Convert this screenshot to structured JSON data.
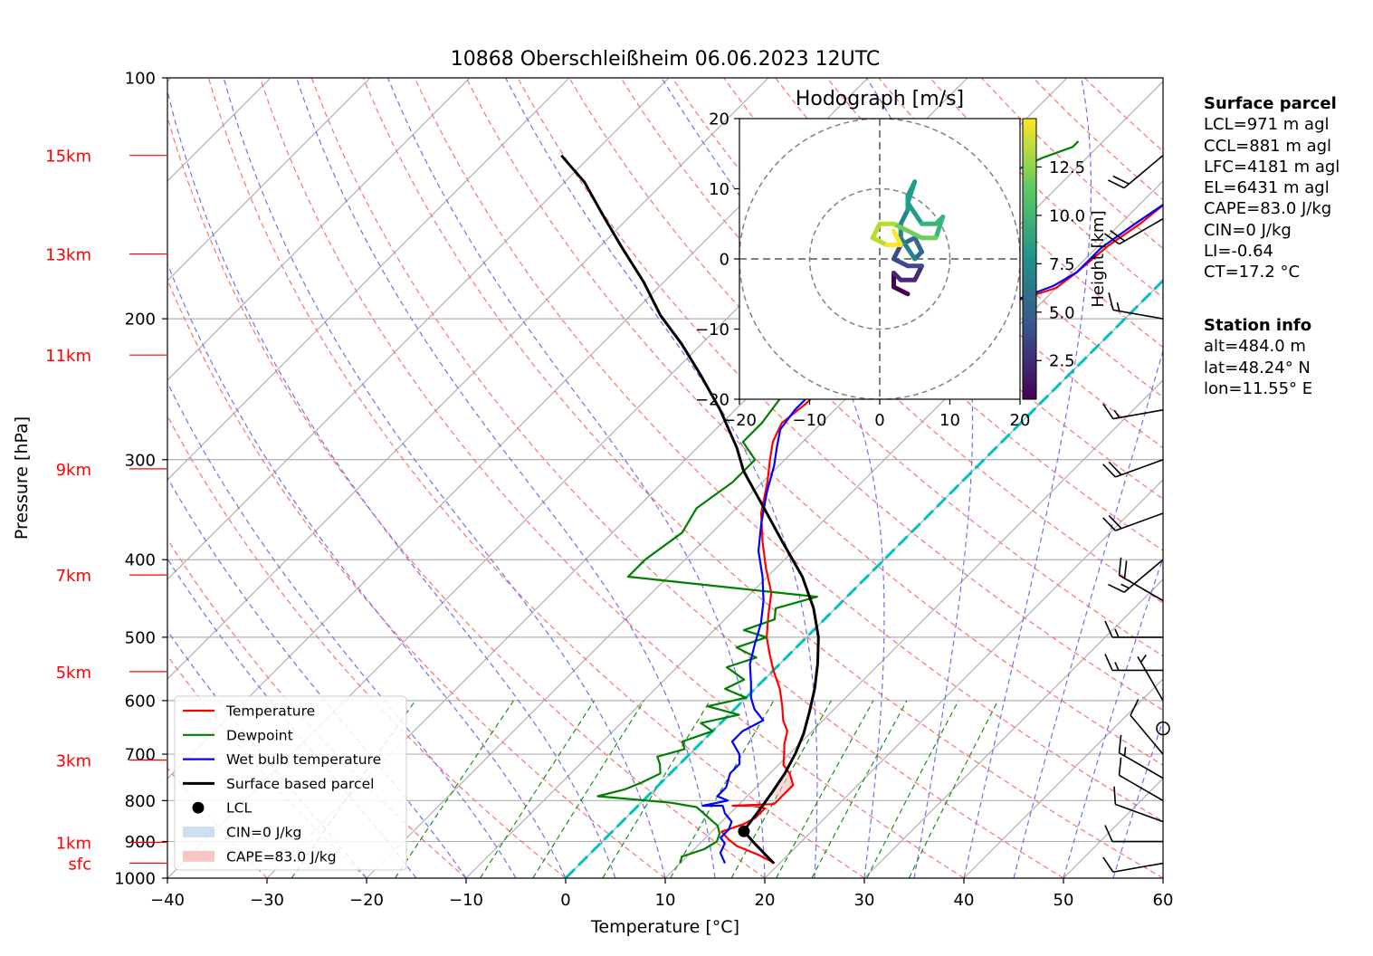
{
  "title": "10868 Oberschleißheim 06.06.2023 12UTC",
  "chart_data": {
    "type": "skew-t log-p",
    "title": "10868 Oberschleißheim 06.06.2023 12UTC",
    "xlabel": "Temperature [°C]",
    "ylabel": "Pressure [hPa]",
    "xlim": [
      -40,
      60
    ],
    "ylim_hpa": [
      1000,
      100
    ],
    "x_ticks": [
      "−40",
      "−30",
      "−20",
      "−10",
      "0",
      "10",
      "20",
      "30",
      "40",
      "50",
      "60"
    ],
    "y_ticks": [
      "100",
      "200",
      "300",
      "400",
      "500",
      "600",
      "700",
      "800",
      "900",
      "1000"
    ],
    "height_labels": [
      {
        "label": "15km",
        "p": 125
      },
      {
        "label": "13km",
        "p": 166
      },
      {
        "label": "11km",
        "p": 222
      },
      {
        "label": "9km",
        "p": 308
      },
      {
        "label": "7km",
        "p": 418
      },
      {
        "label": "5km",
        "p": 552
      },
      {
        "label": "3km",
        "p": 712
      },
      {
        "label": "1km",
        "p": 902
      },
      {
        "label": "sfc",
        "p": 958
      }
    ],
    "grid": true,
    "series": [
      {
        "name": "Temperature",
        "color": "#ff0000",
        "points": [
          [
            19.5,
            958
          ],
          [
            17,
            935
          ],
          [
            14,
            912
          ],
          [
            12.5,
            895
          ],
          [
            11,
            875
          ],
          [
            12.5,
            855
          ],
          [
            13,
            840
          ],
          [
            13,
            818
          ],
          [
            11.5,
            812
          ],
          [
            9.5,
            812
          ],
          [
            13.5,
            808
          ],
          [
            13.5,
            788
          ],
          [
            13.5,
            765
          ],
          [
            12,
            740
          ],
          [
            10.5,
            722
          ],
          [
            9.5,
            700
          ],
          [
            8.5,
            680
          ],
          [
            7.5,
            655
          ],
          [
            6,
            635
          ],
          [
            4.5,
            610
          ],
          [
            2.5,
            580
          ],
          [
            0,
            550
          ],
          [
            -2,
            525
          ],
          [
            -4,
            500
          ],
          [
            -6,
            470
          ],
          [
            -8,
            440
          ],
          [
            -11,
            410
          ],
          [
            -14,
            380
          ],
          [
            -17,
            350
          ],
          [
            -19.5,
            320
          ],
          [
            -21.5,
            300
          ],
          [
            -23,
            285
          ],
          [
            -24,
            270
          ],
          [
            -23.5,
            255
          ],
          [
            -23.5,
            240
          ],
          [
            -21,
            225
          ],
          [
            -18.5,
            212
          ],
          [
            -16,
            200
          ],
          [
            -13.5,
            192
          ],
          [
            -10,
            183
          ],
          [
            -9.5,
            175
          ],
          [
            -9,
            162
          ],
          [
            -8,
            152
          ],
          [
            -7.5,
            143
          ],
          [
            -6.5,
            137
          ],
          [
            -5.5,
            132
          ],
          [
            -4,
            126
          ],
          [
            -2.5,
            121
          ],
          [
            -2,
            118
          ]
        ]
      },
      {
        "name": "Dewpoint",
        "color": "#008000",
        "points": [
          [
            10,
            958
          ],
          [
            9.5,
            940
          ],
          [
            11,
            920
          ],
          [
            11.5,
            900
          ],
          [
            11,
            880
          ],
          [
            10,
            860
          ],
          [
            6,
            815
          ],
          [
            3,
            805
          ],
          [
            -5,
            790
          ],
          [
            -3,
            775
          ],
          [
            -2,
            760
          ],
          [
            -1,
            740
          ],
          [
            -2,
            720
          ],
          [
            -3,
            705
          ],
          [
            -1,
            690
          ],
          [
            -2,
            675
          ],
          [
            0,
            655
          ],
          [
            -2,
            640
          ],
          [
            1,
            625
          ],
          [
            -3,
            610
          ],
          [
            0,
            595
          ],
          [
            -3,
            580
          ],
          [
            -2,
            565
          ],
          [
            -5,
            545
          ],
          [
            -3,
            530
          ],
          [
            -6,
            515
          ],
          [
            -4,
            500
          ],
          [
            -7,
            490
          ],
          [
            -5,
            475
          ],
          [
            -6,
            460
          ],
          [
            -3,
            445
          ],
          [
            -24,
            420
          ],
          [
            -24,
            400
          ],
          [
            -23,
            370
          ],
          [
            -24,
            345
          ],
          [
            -23,
            320
          ],
          [
            -23,
            300
          ],
          [
            -26,
            285
          ],
          [
            -26,
            270
          ],
          [
            -26.5,
            255
          ],
          [
            -27,
            240
          ],
          [
            -29,
            225
          ],
          [
            -30.5,
            210
          ],
          [
            -31,
            195
          ],
          [
            -31,
            180
          ],
          [
            -30,
            165
          ],
          [
            -29,
            155
          ],
          [
            -28,
            145
          ],
          [
            -27,
            137
          ],
          [
            -26,
            131
          ],
          [
            -24.5,
            126
          ],
          [
            -22.5,
            122
          ],
          [
            -22.5,
            120
          ]
        ]
      },
      {
        "name": "Wet bulb temperature",
        "color": "#0000ff",
        "points": [
          [
            14.5,
            958
          ],
          [
            13,
            930
          ],
          [
            12.5,
            905
          ],
          [
            11.5,
            890
          ],
          [
            11.5,
            870
          ],
          [
            11,
            850
          ],
          [
            9.5,
            830
          ],
          [
            8.5,
            812
          ],
          [
            6.5,
            812
          ],
          [
            8.5,
            800
          ],
          [
            7,
            790
          ],
          [
            7,
            770
          ],
          [
            6,
            740
          ],
          [
            6,
            720
          ],
          [
            5,
            700
          ],
          [
            3,
            675
          ],
          [
            3,
            655
          ],
          [
            4,
            635
          ],
          [
            2,
            615
          ],
          [
            0.5,
            595
          ],
          [
            -1,
            570
          ],
          [
            -3,
            540
          ],
          [
            -4.5,
            510
          ],
          [
            -6,
            480
          ],
          [
            -8,
            450
          ],
          [
            -10.5,
            420
          ],
          [
            -13.5,
            390
          ],
          [
            -16,
            360
          ],
          [
            -18.5,
            330
          ],
          [
            -20.5,
            305
          ],
          [
            -22,
            290
          ],
          [
            -23.5,
            275
          ],
          [
            -24,
            260
          ],
          [
            -24,
            245
          ],
          [
            -22,
            230
          ],
          [
            -20,
            218
          ],
          [
            -17.5,
            205
          ],
          [
            -15.5,
            198
          ],
          [
            -13,
            190
          ],
          [
            -10.5,
            182
          ],
          [
            -9.5,
            175
          ],
          [
            -9.5,
            163
          ],
          [
            -8.5,
            152
          ],
          [
            -7.5,
            143
          ],
          [
            -6.5,
            137
          ],
          [
            -5.5,
            132
          ],
          [
            -4,
            126
          ],
          [
            -3,
            121
          ],
          [
            -2.5,
            118
          ]
        ]
      },
      {
        "name": "Surface based parcel",
        "color": "#000000",
        "points": [
          [
            19.4,
            958
          ],
          [
            15.5,
            905
          ],
          [
            13.2,
            874
          ],
          [
            13,
            860
          ],
          [
            12.6,
            820
          ],
          [
            12.1,
            780
          ],
          [
            11.5,
            740
          ],
          [
            10.6,
            700
          ],
          [
            9.4,
            660
          ],
          [
            7.8,
            620
          ],
          [
            6,
            580
          ],
          [
            3.8,
            540
          ],
          [
            1.2,
            500
          ],
          [
            -2.2,
            460
          ],
          [
            -6.5,
            420
          ],
          [
            -12,
            380
          ],
          [
            -18,
            340
          ],
          [
            -23,
            310
          ],
          [
            -26,
            290
          ],
          [
            -31.5,
            260
          ],
          [
            -37,
            235
          ],
          [
            -42,
            215
          ],
          [
            -47,
            198
          ],
          [
            -52,
            180
          ],
          [
            -58,
            162
          ],
          [
            -63,
            148
          ],
          [
            -68,
            135
          ],
          [
            -73,
            125
          ]
        ]
      }
    ],
    "lcl": {
      "name": "LCL",
      "temp": 13.2,
      "p": 874
    },
    "cin_label": "CIN=0 J/kg",
    "cape_label": "CAPE=83.0 J/kg",
    "cape_region_hpa": [
      720,
      790
    ],
    "legend": [
      "Temperature",
      "Dewpoint",
      "Wet bulb temperature",
      "Surface based parcel",
      "LCL",
      "CIN=0 J/kg",
      "CAPE=83.0 J/kg"
    ],
    "legend_position": "lower-left",
    "zero_isotherm_color": "#00c0c0",
    "wind_barbs": [
      {
        "p": 958,
        "dir": 260,
        "speed_kt": 10
      },
      {
        "p": 900,
        "dir": 270,
        "speed_kt": 10
      },
      {
        "p": 850,
        "dir": 290,
        "speed_kt": 10
      },
      {
        "p": 800,
        "dir": 300,
        "speed_kt": 10
      },
      {
        "p": 750,
        "dir": 300,
        "speed_kt": 15
      },
      {
        "p": 700,
        "dir": 320,
        "speed_kt": 10
      },
      {
        "p": 650,
        "dir": 0,
        "speed_kt": 0
      },
      {
        "p": 600,
        "dir": 330,
        "speed_kt": 5
      },
      {
        "p": 550,
        "dir": 270,
        "speed_kt": 15
      },
      {
        "p": 500,
        "dir": 270,
        "speed_kt": 15
      },
      {
        "p": 450,
        "dir": 300,
        "speed_kt": 20
      },
      {
        "p": 400,
        "dir": 230,
        "speed_kt": 15
      },
      {
        "p": 350,
        "dir": 250,
        "speed_kt": 20
      },
      {
        "p": 300,
        "dir": 250,
        "speed_kt": 20
      },
      {
        "p": 260,
        "dir": 260,
        "speed_kt": 15
      },
      {
        "p": 200,
        "dir": 280,
        "speed_kt": 15
      },
      {
        "p": 150,
        "dir": 240,
        "speed_kt": 20
      },
      {
        "p": 125,
        "dir": 230,
        "speed_kt": 20
      }
    ],
    "hodograph": {
      "title": "Hodograph [m/s]",
      "xlim": [
        -20,
        20
      ],
      "ylim": [
        -20,
        20
      ],
      "ticks": [
        "−20",
        "−10",
        "0",
        "10",
        "20"
      ],
      "colorbar_label": "Height [km]",
      "colorbar_ticks": [
        "2.5",
        "5.0",
        "7.5",
        "10.0",
        "12.5"
      ],
      "colorbar_range": [
        0.5,
        15
      ],
      "trace": [
        {
          "u": 4,
          "v": -5,
          "h": 0.5
        },
        {
          "u": 2,
          "v": -4,
          "h": 1.0
        },
        {
          "u": 2,
          "v": -2,
          "h": 1.5
        },
        {
          "u": 3,
          "v": -3,
          "h": 2.0
        },
        {
          "u": 5,
          "v": -3,
          "h": 2.5
        },
        {
          "u": 6,
          "v": -1,
          "h": 3.0
        },
        {
          "u": 4,
          "v": -1,
          "h": 3.5
        },
        {
          "u": 2,
          "v": 0,
          "h": 4.0
        },
        {
          "u": 3,
          "v": 2,
          "h": 4.5
        },
        {
          "u": 5,
          "v": 3,
          "h": 5.0
        },
        {
          "u": 6,
          "v": 1,
          "h": 5.5
        },
        {
          "u": 5,
          "v": 0,
          "h": 6.0
        },
        {
          "u": 3,
          "v": 3,
          "h": 6.5
        },
        {
          "u": 3,
          "v": 5,
          "h": 7.0
        },
        {
          "u": 4,
          "v": 7,
          "h": 7.5
        },
        {
          "u": 4,
          "v": 9,
          "h": 8.0
        },
        {
          "u": 5,
          "v": 11,
          "h": 8.5
        },
        {
          "u": 4,
          "v": 8,
          "h": 9.0
        },
        {
          "u": 6,
          "v": 5,
          "h": 9.5
        },
        {
          "u": 8,
          "v": 5,
          "h": 10.0
        },
        {
          "u": 9,
          "v": 6,
          "h": 10.5
        },
        {
          "u": 8,
          "v": 3,
          "h": 11.0
        },
        {
          "u": 6,
          "v": 3,
          "h": 11.5
        },
        {
          "u": 4,
          "v": 4,
          "h": 12.0
        },
        {
          "u": 2,
          "v": 5,
          "h": 12.5
        },
        {
          "u": 0,
          "v": 5,
          "h": 13.0
        },
        {
          "u": -1,
          "v": 3,
          "h": 13.5
        },
        {
          "u": 1,
          "v": 2,
          "h": 14.0
        },
        {
          "u": 3,
          "v": 2,
          "h": 14.5
        },
        {
          "u": 2,
          "v": 4,
          "h": 15.0
        }
      ]
    }
  },
  "surface_parcel": {
    "heading": "Surface parcel",
    "lines": [
      "LCL=971 m agl",
      "CCL=881 m agl",
      "LFC=4181 m agl",
      "EL=6431 m agl",
      "CAPE=83.0 J/kg",
      "CIN=0 J/kg",
      "LI=-0.64",
      "CT=17.2 °C"
    ]
  },
  "station_info": {
    "heading": "Station info",
    "lines": [
      "alt=484.0 m",
      "lat=48.24° N",
      "lon=11.55° E"
    ]
  }
}
